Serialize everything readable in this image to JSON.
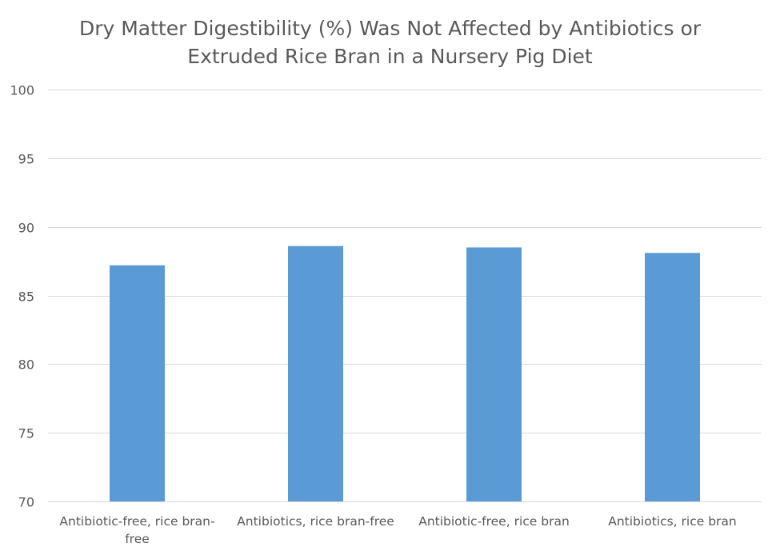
{
  "chart_data": {
    "type": "bar",
    "title_lines": [
      "Dry Matter Digestibility (%) Was Not Affected by Antibiotics or",
      "Extruded Rice Bran in a Nursery Pig Diet"
    ],
    "categories": [
      "Antibiotic-free, rice bran-free",
      "Antibiotics, rice bran-free",
      "Antibiotic-free, rice bran",
      "Antibiotics, rice bran"
    ],
    "values": [
      87.2,
      88.6,
      88.5,
      88.1
    ],
    "xlabel": "",
    "ylabel": "",
    "ylim": [
      70,
      100
    ],
    "yticks": [
      70,
      75,
      80,
      85,
      90,
      95,
      100
    ],
    "grid": true,
    "legend": "none",
    "bar_color": "#5B9BD5",
    "grid_color": "#D9D9D9"
  }
}
